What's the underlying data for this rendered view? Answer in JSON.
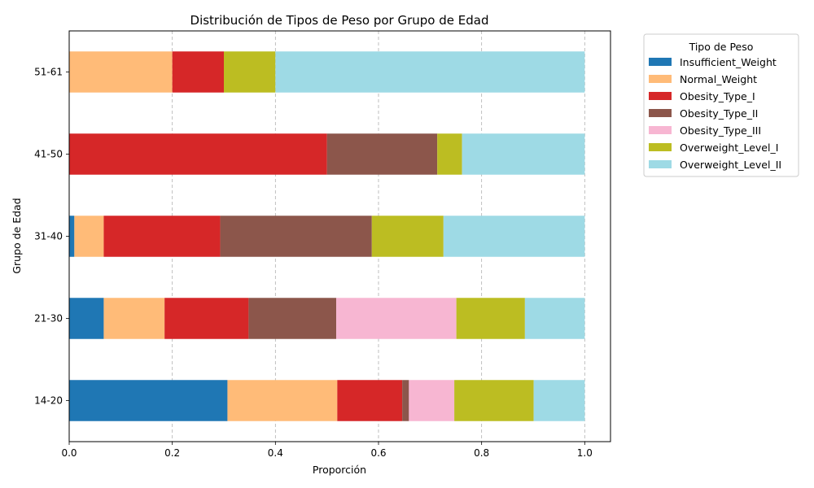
{
  "chart_data": {
    "type": "bar",
    "orientation": "horizontal",
    "stacked": true,
    "title": "Distribución de Tipos de Peso por Grupo de Edad",
    "xlabel": "Proporción",
    "ylabel": "Grupo de Edad",
    "xlim": [
      0,
      1.05
    ],
    "xticks": [
      0.0,
      0.2,
      0.4,
      0.6,
      0.8,
      1.0
    ],
    "xtick_labels": [
      "0.0",
      "0.2",
      "0.4",
      "0.6",
      "0.8",
      "1.0"
    ],
    "grid": "x-dashed",
    "legend_title": "Tipo de Peso",
    "legend_placement": "outside-top-right",
    "categories": [
      "14-20",
      "21-30",
      "31-40",
      "41-50",
      "51-61"
    ],
    "series": [
      {
        "name": "Insufficient_Weight",
        "color": "#1f77b4",
        "values": [
          0.307,
          0.067,
          0.01,
          0.0,
          0.0
        ]
      },
      {
        "name": "Normal_Weight",
        "color": "#ffbb78",
        "values": [
          0.213,
          0.118,
          0.057,
          0.0,
          0.2
        ]
      },
      {
        "name": "Obesity_Type_I",
        "color": "#d62728",
        "values": [
          0.126,
          0.163,
          0.226,
          0.5,
          0.1
        ]
      },
      {
        "name": "Obesity_Type_II",
        "color": "#8c564b",
        "values": [
          0.013,
          0.17,
          0.294,
          0.214,
          0.0
        ]
      },
      {
        "name": "Obesity_Type_III",
        "color": "#f7b6d2",
        "values": [
          0.088,
          0.233,
          0.0,
          0.0,
          0.0
        ]
      },
      {
        "name": "Overweight_Level_I",
        "color": "#bcbd22",
        "values": [
          0.154,
          0.133,
          0.139,
          0.048,
          0.1
        ]
      },
      {
        "name": "Overweight_Level_II",
        "color": "#9edae5",
        "values": [
          0.099,
          0.116,
          0.274,
          0.238,
          0.6
        ]
      }
    ]
  }
}
